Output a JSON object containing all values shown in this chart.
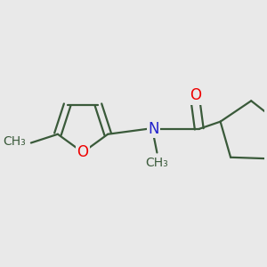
{
  "bg_color": "#e9e9e9",
  "bond_color": "#3a5a3a",
  "bond_width": 1.6,
  "atom_colors": {
    "O": "#ee0000",
    "N": "#2222cc",
    "C": "#3a5a3a"
  },
  "font_size": 12,
  "methyl_font_size": 10
}
